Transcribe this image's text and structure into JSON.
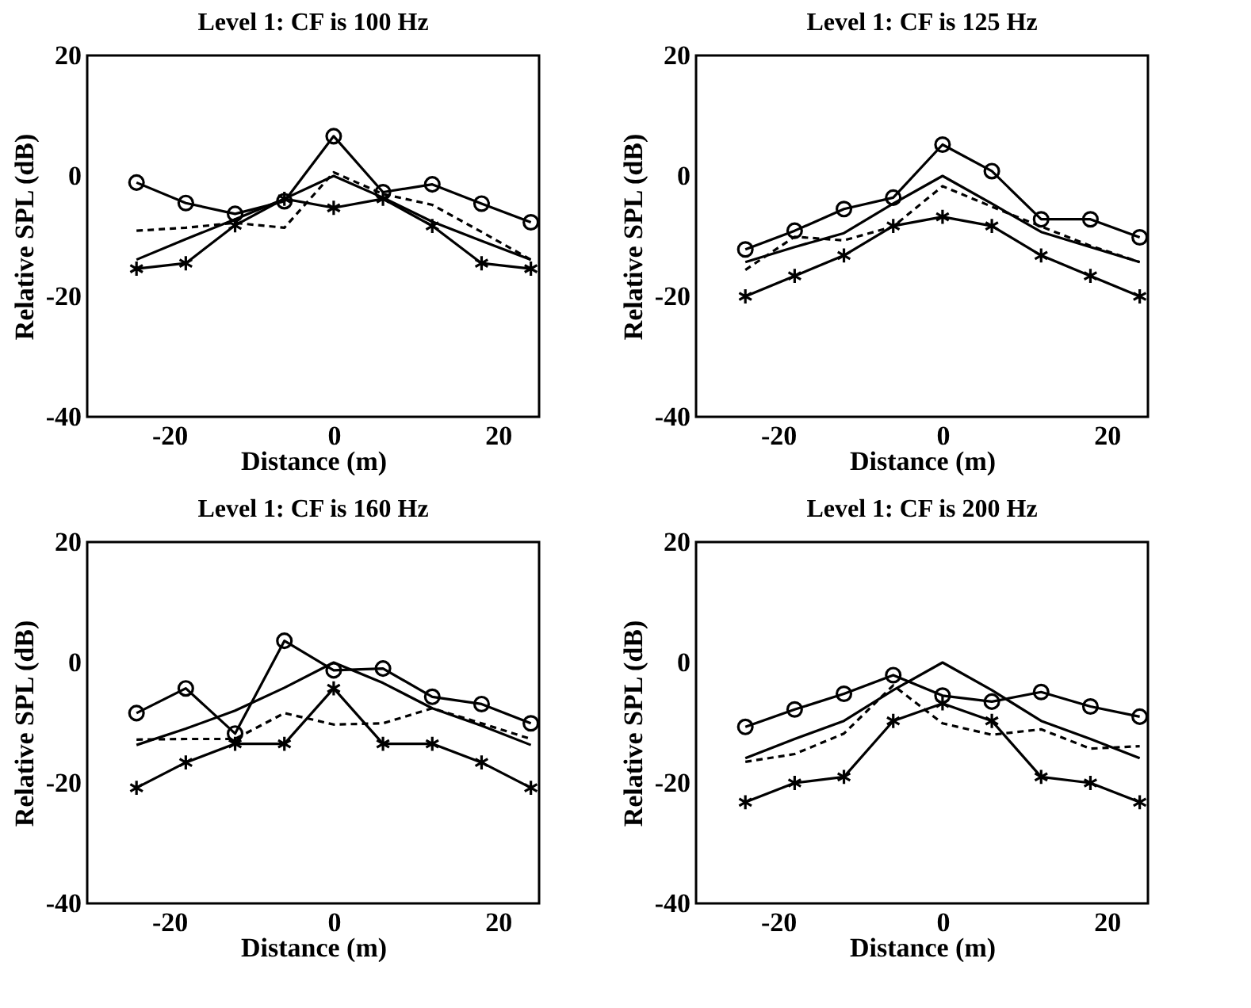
{
  "chart_data": [
    {
      "type": "line",
      "title": "Level 1: CF is 100 Hz",
      "xlabel": "Distance (m)",
      "ylabel": "Relative SPL (dB)",
      "x": [
        -24,
        -18,
        -12,
        -6,
        0,
        6,
        12,
        18,
        24
      ],
      "xlim": [
        -30,
        25
      ],
      "xticks": [
        -20,
        0,
        20
      ],
      "ylim": [
        -40,
        20
      ],
      "yticks": [
        -40,
        -20,
        0,
        20
      ],
      "series": [
        {
          "color": "#000000",
          "marker": "circle",
          "line_style": "solid",
          "values": [
            -1.1,
            -4.5,
            -6.3,
            -4.2,
            6.6,
            -2.7,
            -1.4,
            -4.6,
            -7.7
          ]
        },
        {
          "color": "#000000",
          "marker": "cross",
          "line_style": "solid",
          "values": [
            -15.4,
            -14.5,
            -8.2,
            -3.8,
            -5.3,
            -3.8,
            -8.3,
            -14.5,
            -15.4
          ]
        },
        {
          "color": "#000000",
          "marker": "none",
          "line_style": "solid",
          "values": [
            -13.9,
            -10.5,
            -7.2,
            -3.8,
            0,
            -3.6,
            -7.6,
            -10.8,
            -13.9
          ]
        },
        {
          "color": "#000000",
          "marker": "none",
          "line_style": "dashed",
          "values": [
            -9.1,
            -8.6,
            -7.8,
            -8.6,
            0.6,
            -3.0,
            -4.8,
            -9.3,
            -13.9
          ]
        }
      ]
    },
    {
      "type": "line",
      "title": "Level 1: CF is 125 Hz",
      "xlabel": "Distance (m)",
      "ylabel": "Relative SPL (dB)",
      "x": [
        -24,
        -18,
        -12,
        -6,
        0,
        6,
        12,
        18,
        24
      ],
      "xlim": [
        -30,
        25
      ],
      "xticks": [
        -20,
        0,
        20
      ],
      "ylim": [
        -40,
        20
      ],
      "yticks": [
        -40,
        -20,
        0,
        20
      ],
      "series": [
        {
          "color": "#000000",
          "marker": "circle",
          "line_style": "solid",
          "values": [
            -12.2,
            -9.1,
            -5.5,
            -3.6,
            5.2,
            0.8,
            -7.2,
            -7.2,
            -10.2
          ]
        },
        {
          "color": "#000000",
          "marker": "cross",
          "line_style": "solid",
          "values": [
            -20,
            -16.6,
            -13.2,
            -8.3,
            -6.8,
            -8.3,
            -13.2,
            -16.6,
            -20
          ]
        },
        {
          "color": "#000000",
          "marker": "none",
          "line_style": "solid",
          "values": [
            -14.3,
            -11.8,
            -9.5,
            -4.6,
            0,
            -4.6,
            -9.3,
            -11.8,
            -14.3
          ]
        },
        {
          "color": "#000000",
          "marker": "none",
          "line_style": "dashed",
          "values": [
            -15.6,
            -10.1,
            -10.7,
            -8.4,
            -1.7,
            -5.1,
            -8.4,
            -11.6,
            -14.3
          ]
        }
      ]
    },
    {
      "type": "line",
      "title": "Level 1: CF is 160 Hz",
      "xlabel": "Distance (m)",
      "ylabel": "Relative SPL (dB)",
      "x": [
        -24,
        -18,
        -12,
        -6,
        0,
        6,
        12,
        18,
        24
      ],
      "xlim": [
        -30,
        25
      ],
      "xticks": [
        -20,
        0,
        20
      ],
      "ylim": [
        -40,
        20
      ],
      "yticks": [
        -40,
        -20,
        0,
        20
      ],
      "series": [
        {
          "color": "#000000",
          "marker": "circle",
          "line_style": "solid",
          "values": [
            -8.4,
            -4.3,
            -11.8,
            3.6,
            -1.3,
            -1.0,
            -5.7,
            -6.9,
            -10.1
          ]
        },
        {
          "color": "#000000",
          "marker": "cross",
          "line_style": "solid",
          "values": [
            -20.8,
            -16.6,
            -13.5,
            -13.5,
            -4.3,
            -13.5,
            -13.5,
            -16.6,
            -20.8
          ]
        },
        {
          "color": "#000000",
          "marker": "none",
          "line_style": "solid",
          "values": [
            -13.7,
            -11.0,
            -8.0,
            -4.2,
            0,
            -3.4,
            -7.6,
            -10.5,
            -13.7
          ]
        },
        {
          "color": "#000000",
          "marker": "none",
          "line_style": "dashed",
          "values": [
            -12.8,
            -12.7,
            -12.7,
            -8.4,
            -10.3,
            -10.1,
            -7.6,
            -10.1,
            -12.7
          ]
        }
      ]
    },
    {
      "type": "line",
      "title": "Level 1: CF is 200 Hz",
      "xlabel": "Distance (m)",
      "ylabel": "Relative SPL (dB)",
      "x": [
        -24,
        -18,
        -12,
        -6,
        0,
        6,
        12,
        18,
        24
      ],
      "xlim": [
        -30,
        25
      ],
      "xticks": [
        -20,
        0,
        20
      ],
      "ylim": [
        -40,
        20
      ],
      "yticks": [
        -40,
        -20,
        0,
        20
      ],
      "series": [
        {
          "color": "#000000",
          "marker": "circle",
          "line_style": "solid",
          "values": [
            -10.7,
            -7.8,
            -5.2,
            -2.1,
            -5.5,
            -6.5,
            -4.9,
            -7.3,
            -9.0
          ]
        },
        {
          "color": "#000000",
          "marker": "cross",
          "line_style": "solid",
          "values": [
            -23.2,
            -20,
            -19,
            -9.7,
            -6.8,
            -9.7,
            -19,
            -20,
            -23.2
          ]
        },
        {
          "color": "#000000",
          "marker": "none",
          "line_style": "solid",
          "values": [
            -15.9,
            -12.7,
            -9.7,
            -4.6,
            0,
            -4.6,
            -9.7,
            -12.7,
            -15.9
          ]
        },
        {
          "color": "#000000",
          "marker": "none",
          "line_style": "dashed",
          "values": [
            -16.5,
            -15.2,
            -11.8,
            -3.8,
            -10.1,
            -12.0,
            -11.1,
            -14.3,
            -13.9
          ]
        }
      ]
    }
  ]
}
